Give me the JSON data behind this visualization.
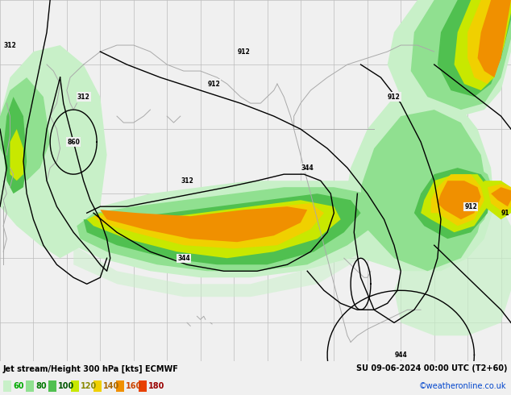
{
  "title_left": "Jet stream/Height 300 hPa [kts] ECMWF",
  "title_right": "SU 09-06-2024 00:00 UTC (T2+60)",
  "credit": "©weatheronline.co.uk",
  "figsize": [
    6.34,
    4.9
  ],
  "dpi": 100,
  "map_bg": "#f0f0f0",
  "grid_color": "#bbbbbb",
  "coastline_color": "#aaaaaa",
  "contour_color": "#000000",
  "wind_colors": {
    "60": "#c8f0c8",
    "80": "#90e090",
    "100": "#50c050",
    "120": "#c8e800",
    "140": "#f0d000",
    "160": "#f09000",
    "180": "#e84000"
  }
}
